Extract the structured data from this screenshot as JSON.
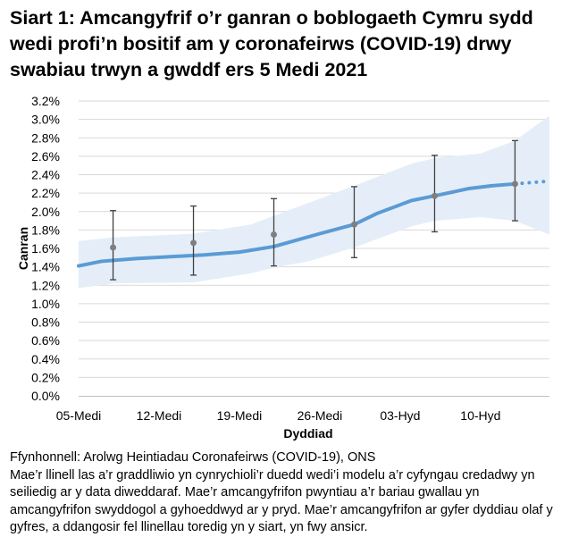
{
  "chart_data": {
    "type": "line",
    "title": "Siart 1: Amcangyfrif o’r ganran o boblogaeth Cymru sydd wedi profi’n bositif am y coronafeirws (COVID-19) drwy swabiau trwyn a gwddf ers 5 Medi 2021",
    "xlabel": "Dyddiad",
    "ylabel": "Canran",
    "ylim": [
      0,
      3.2
    ],
    "y_ticks": [
      "0.0%",
      "0.2%",
      "0.4%",
      "0.6%",
      "0.8%",
      "1.0%",
      "1.2%",
      "1.4%",
      "1.6%",
      "1.8%",
      "2.0%",
      "2.2%",
      "2.4%",
      "2.6%",
      "2.8%",
      "3.0%",
      "3.2%"
    ],
    "x_range": [
      "2021-09-05",
      "2021-10-16"
    ],
    "x_ticks": [
      {
        "date": "2021-09-05",
        "label": "05-Medi"
      },
      {
        "date": "2021-09-12",
        "label": "12-Medi"
      },
      {
        "date": "2021-09-19",
        "label": "19-Medi"
      },
      {
        "date": "2021-09-26",
        "label": "26-Medi"
      },
      {
        "date": "2021-10-03",
        "label": "03-Hyd"
      },
      {
        "date": "2021-10-10",
        "label": "10-Hyd"
      }
    ],
    "grid": true,
    "colors": {
      "line": "#5b9bd5",
      "band": "#e5eef8",
      "points": "#7f7f7f",
      "error_bars": "#404040",
      "grid": "#d9d9d9"
    },
    "modelled_trend": [
      [
        "2021-09-05",
        1.41
      ],
      [
        "2021-09-07",
        1.46
      ],
      [
        "2021-09-10",
        1.49
      ],
      [
        "2021-09-13",
        1.51
      ],
      [
        "2021-09-16",
        1.53
      ],
      [
        "2021-09-19",
        1.56
      ],
      [
        "2021-09-22",
        1.62
      ],
      [
        "2021-09-24",
        1.69
      ],
      [
        "2021-09-26",
        1.76
      ],
      [
        "2021-09-29",
        1.86
      ],
      [
        "2021-10-01",
        1.98
      ],
      [
        "2021-10-04",
        2.12
      ],
      [
        "2021-10-06",
        2.17
      ],
      [
        "2021-10-09",
        2.25
      ],
      [
        "2021-10-11",
        2.28
      ],
      [
        "2021-10-13",
        2.3
      ]
    ],
    "modelled_trend_uncertain": [
      [
        "2021-10-13",
        2.3
      ],
      [
        "2021-10-16",
        2.33
      ]
    ],
    "credible_interval_upper": [
      [
        "2021-09-05",
        1.68
      ],
      [
        "2021-09-08",
        1.72
      ],
      [
        "2021-09-15",
        1.76
      ],
      [
        "2021-09-20",
        1.86
      ],
      [
        "2021-09-23",
        2.0
      ],
      [
        "2021-09-26",
        2.14
      ],
      [
        "2021-09-29",
        2.28
      ],
      [
        "2021-10-04",
        2.52
      ],
      [
        "2021-10-06",
        2.58
      ],
      [
        "2021-10-10",
        2.63
      ],
      [
        "2021-10-13",
        2.77
      ],
      [
        "2021-10-16",
        3.04
      ]
    ],
    "credible_interval_lower": [
      [
        "2021-09-05",
        1.17
      ],
      [
        "2021-09-08",
        1.22
      ],
      [
        "2021-09-15",
        1.23
      ],
      [
        "2021-09-20",
        1.33
      ],
      [
        "2021-09-22",
        1.39
      ],
      [
        "2021-09-25",
        1.46
      ],
      [
        "2021-09-29",
        1.61
      ],
      [
        "2021-10-04",
        1.84
      ],
      [
        "2021-10-06",
        1.9
      ],
      [
        "2021-10-10",
        1.94
      ],
      [
        "2021-10-13",
        1.9
      ],
      [
        "2021-10-16",
        1.75
      ]
    ],
    "point_estimates": [
      {
        "date": "2021-09-08",
        "value": 1.61,
        "lower": 1.26,
        "upper": 2.01
      },
      {
        "date": "2021-09-15",
        "value": 1.66,
        "lower": 1.31,
        "upper": 2.06
      },
      {
        "date": "2021-09-22",
        "value": 1.75,
        "lower": 1.41,
        "upper": 2.14
      },
      {
        "date": "2021-09-29",
        "value": 1.86,
        "lower": 1.5,
        "upper": 2.27
      },
      {
        "date": "2021-10-06",
        "value": 2.17,
        "lower": 1.78,
        "upper": 2.61
      },
      {
        "date": "2021-10-13",
        "value": 2.3,
        "lower": 1.9,
        "upper": 2.77
      }
    ]
  },
  "footer": {
    "source": "Ffynhonnell: Arolwg Heintiadau Coronafeirws (COVID-19), ONS",
    "note": "Mae’r llinell las a’r graddliwio yn cynrychioli’r duedd wedi’i modelu a’r cyfyngau credadwy yn seiliedig ar y data diweddaraf. Mae’r amcangyfrifon pwyntiau a’r bariau gwallau yn amcangyfrifon swyddogol a gyhoeddwyd ar y pryd. Mae’r amcangyfrifon ar gyfer dyddiau olaf y gyfres, a ddangosir fel llinellau toredig yn y siart, yn fwy ansicr."
  }
}
